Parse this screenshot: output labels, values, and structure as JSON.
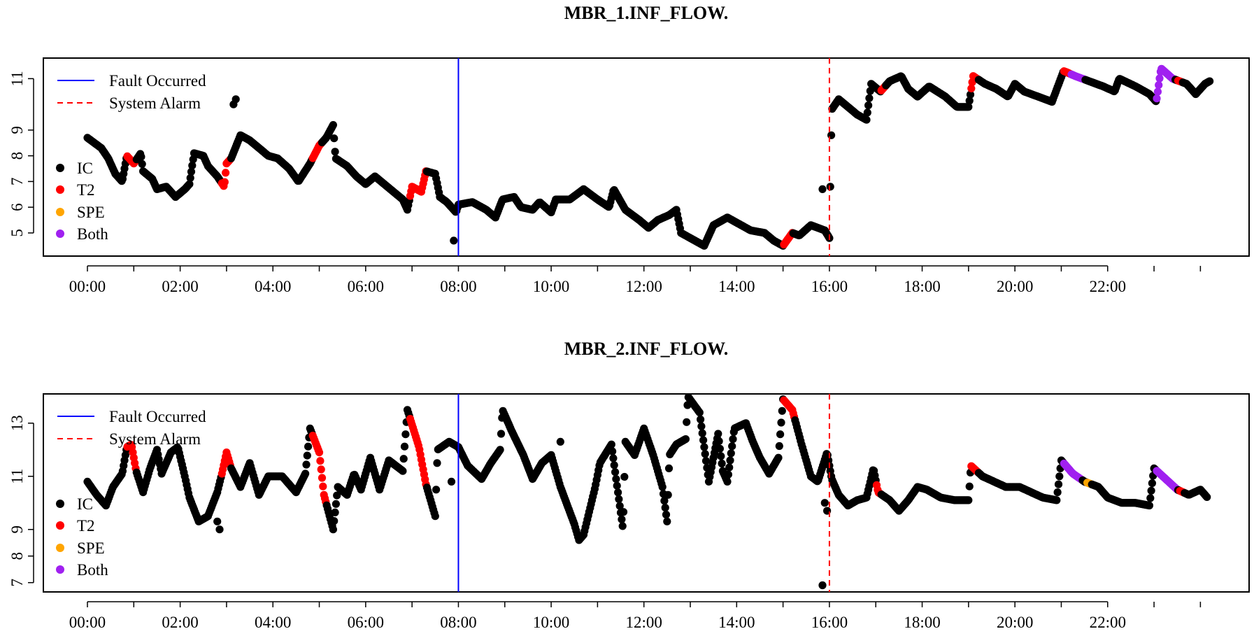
{
  "colors": {
    "IC": "#000000",
    "T2": "#ff0000",
    "SPE": "#ffa500",
    "Both": "#a020f0",
    "fault_line": "#0000ff",
    "alarm_line": "#ff0000"
  },
  "legend": {
    "fault": "Fault Occurred",
    "alarm": "System Alarm",
    "ic": "IC",
    "t2": "T2",
    "spe": "SPE",
    "both": "Both"
  },
  "chart_data": [
    {
      "type": "scatter",
      "title": "MBR_1.INF_FLOW.",
      "xlabel": "",
      "ylabel": "",
      "x_unit": "hours",
      "xlim": [
        -0.95,
        25.05
      ],
      "ylim": [
        4.1,
        11.8
      ],
      "x_tick_labels": [
        "00:00",
        "02:00",
        "04:00",
        "06:00",
        "08:00",
        "10:00",
        "12:00",
        "14:00",
        "16:00",
        "18:00",
        "20:00",
        "22:00"
      ],
      "y_ticks": [
        5,
        6,
        7,
        8,
        9,
        11
      ],
      "fault_occurred": "08:00",
      "system_alarm": "16:00",
      "legend_position": "top-left",
      "anchors": [
        [
          0.0,
          8.7
        ],
        [
          0.3,
          8.3
        ],
        [
          0.45,
          7.9
        ],
        [
          0.6,
          7.3
        ],
        [
          0.75,
          7.0
        ],
        [
          0.85,
          8.0
        ],
        [
          1.0,
          7.7
        ],
        [
          1.15,
          8.1
        ],
        [
          1.2,
          7.4
        ],
        [
          1.4,
          7.1
        ],
        [
          1.5,
          6.7
        ],
        [
          1.7,
          6.8
        ],
        [
          1.9,
          6.4
        ],
        [
          2.1,
          6.7
        ],
        [
          2.2,
          6.9
        ],
        [
          2.3,
          8.1
        ],
        [
          2.5,
          8.0
        ],
        [
          2.6,
          7.6
        ],
        [
          2.8,
          7.2
        ],
        [
          2.95,
          6.8
        ],
        [
          3.0,
          7.7
        ],
        [
          3.1,
          7.9
        ],
        [
          3.3,
          8.8
        ],
        [
          3.5,
          8.6
        ],
        [
          3.7,
          8.3
        ],
        [
          3.9,
          8.0
        ],
        [
          4.1,
          7.9
        ],
        [
          4.35,
          7.5
        ],
        [
          4.55,
          7.0
        ],
        [
          4.8,
          7.7
        ],
        [
          5.0,
          8.4
        ],
        [
          5.15,
          8.7
        ],
        [
          5.3,
          9.2
        ],
        [
          5.35,
          7.9
        ],
        [
          5.6,
          7.6
        ],
        [
          5.8,
          7.2
        ],
        [
          6.0,
          6.9
        ],
        [
          6.2,
          7.2
        ],
        [
          6.4,
          6.9
        ],
        [
          6.6,
          6.6
        ],
        [
          6.8,
          6.3
        ],
        [
          6.9,
          5.9
        ],
        [
          7.0,
          6.8
        ],
        [
          7.2,
          6.6
        ],
        [
          7.3,
          7.4
        ],
        [
          7.5,
          7.3
        ],
        [
          7.6,
          6.4
        ],
        [
          7.75,
          6.2
        ],
        [
          7.95,
          5.8
        ],
        [
          8.0,
          6.1
        ],
        [
          8.3,
          6.2
        ],
        [
          8.6,
          5.9
        ],
        [
          8.8,
          5.6
        ],
        [
          8.95,
          6.3
        ],
        [
          9.2,
          6.4
        ],
        [
          9.35,
          6.0
        ],
        [
          9.6,
          5.9
        ],
        [
          9.75,
          6.2
        ],
        [
          10.0,
          5.8
        ],
        [
          10.1,
          6.3
        ],
        [
          10.4,
          6.3
        ],
        [
          10.7,
          6.7
        ],
        [
          11.0,
          6.3
        ],
        [
          11.25,
          6.0
        ],
        [
          11.35,
          6.7
        ],
        [
          11.6,
          5.9
        ],
        [
          11.9,
          5.5
        ],
        [
          12.1,
          5.2
        ],
        [
          12.3,
          5.5
        ],
        [
          12.55,
          5.7
        ],
        [
          12.7,
          5.9
        ],
        [
          12.8,
          5.0
        ],
        [
          13.0,
          4.8
        ],
        [
          13.3,
          4.5
        ],
        [
          13.5,
          5.3
        ],
        [
          13.8,
          5.6
        ],
        [
          14.0,
          5.4
        ],
        [
          14.3,
          5.1
        ],
        [
          14.6,
          5.0
        ],
        [
          14.8,
          4.7
        ],
        [
          15.0,
          4.5
        ],
        [
          15.2,
          5.0
        ],
        [
          15.35,
          4.9
        ],
        [
          15.6,
          5.3
        ],
        [
          15.9,
          5.1
        ],
        [
          16.0,
          4.8
        ],
        [
          16.05,
          9.8
        ],
        [
          16.2,
          10.2
        ],
        [
          16.4,
          9.9
        ],
        [
          16.6,
          9.6
        ],
        [
          16.8,
          9.4
        ],
        [
          16.9,
          10.8
        ],
        [
          17.1,
          10.5
        ],
        [
          17.3,
          10.9
        ],
        [
          17.55,
          11.1
        ],
        [
          17.7,
          10.6
        ],
        [
          17.9,
          10.3
        ],
        [
          18.15,
          10.7
        ],
        [
          18.5,
          10.3
        ],
        [
          18.75,
          9.9
        ],
        [
          19.0,
          9.9
        ],
        [
          19.1,
          11.1
        ],
        [
          19.35,
          10.8
        ],
        [
          19.6,
          10.6
        ],
        [
          19.85,
          10.3
        ],
        [
          20.0,
          10.8
        ],
        [
          20.2,
          10.5
        ],
        [
          20.5,
          10.3
        ],
        [
          20.8,
          10.1
        ],
        [
          21.05,
          11.3
        ],
        [
          21.3,
          11.1
        ],
        [
          21.6,
          10.9
        ],
        [
          21.9,
          10.7
        ],
        [
          22.15,
          10.5
        ],
        [
          22.25,
          11.0
        ],
        [
          22.6,
          10.7
        ],
        [
          22.9,
          10.4
        ],
        [
          23.05,
          10.1
        ],
        [
          23.15,
          11.4
        ],
        [
          23.4,
          11.0
        ],
        [
          23.7,
          10.8
        ],
        [
          23.9,
          10.4
        ],
        [
          24.1,
          10.8
        ],
        [
          24.2,
          10.9
        ]
      ],
      "outliers": [
        [
          7.9,
          4.7
        ],
        [
          15.85,
          6.7
        ],
        [
          3.2,
          10.2
        ],
        [
          3.15,
          10.0
        ]
      ],
      "t2_ranges": [
        [
          0.85,
          1.05
        ],
        [
          2.9,
          3.1
        ],
        [
          4.85,
          5.05
        ],
        [
          6.95,
          7.3
        ],
        [
          15.0,
          15.2
        ],
        [
          17.1,
          17.2
        ],
        [
          19.05,
          19.2
        ],
        [
          21.05,
          21.2
        ],
        [
          23.5,
          23.6
        ]
      ],
      "spe_ranges": [],
      "both_ranges": [
        [
          21.2,
          21.5
        ],
        [
          23.05,
          23.45
        ]
      ]
    },
    {
      "type": "scatter",
      "title": "MBR_2.INF_FLOW.",
      "xlabel": "",
      "ylabel": "",
      "x_unit": "hours",
      "xlim": [
        -0.95,
        25.05
      ],
      "ylim": [
        6.65,
        14.1
      ],
      "x_tick_labels": [
        "00:00",
        "02:00",
        "04:00",
        "06:00",
        "08:00",
        "10:00",
        "12:00",
        "14:00",
        "16:00",
        "18:00",
        "20:00",
        "22:00"
      ],
      "y_ticks": [
        7,
        8,
        9,
        11,
        13
      ],
      "fault_occurred": "08:00",
      "system_alarm": "16:00",
      "legend_position": "top-left",
      "anchors": [
        [
          0.0,
          10.8
        ],
        [
          0.2,
          10.3
        ],
        [
          0.4,
          9.9
        ],
        [
          0.55,
          10.6
        ],
        [
          0.75,
          11.1
        ],
        [
          0.85,
          12.1
        ],
        [
          0.95,
          12.2
        ],
        [
          1.05,
          11.2
        ],
        [
          1.2,
          10.4
        ],
        [
          1.35,
          11.3
        ],
        [
          1.5,
          12.0
        ],
        [
          1.6,
          11.1
        ],
        [
          1.8,
          11.9
        ],
        [
          1.95,
          12.1
        ],
        [
          2.1,
          11.0
        ],
        [
          2.2,
          10.2
        ],
        [
          2.4,
          9.3
        ],
        [
          2.6,
          9.5
        ],
        [
          2.8,
          10.4
        ],
        [
          2.9,
          11.1
        ],
        [
          3.0,
          11.9
        ],
        [
          3.1,
          11.3
        ],
        [
          3.3,
          10.6
        ],
        [
          3.5,
          11.5
        ],
        [
          3.7,
          10.3
        ],
        [
          3.9,
          11.0
        ],
        [
          4.2,
          11.0
        ],
        [
          4.5,
          10.4
        ],
        [
          4.7,
          11.1
        ],
        [
          4.8,
          12.8
        ],
        [
          5.0,
          11.9
        ],
        [
          5.1,
          10.3
        ],
        [
          5.3,
          9.0
        ],
        [
          5.4,
          10.6
        ],
        [
          5.6,
          10.3
        ],
        [
          5.75,
          11.1
        ],
        [
          5.9,
          10.5
        ],
        [
          6.1,
          11.7
        ],
        [
          6.3,
          10.5
        ],
        [
          6.5,
          11.6
        ],
        [
          6.8,
          11.2
        ],
        [
          6.9,
          13.5
        ],
        [
          7.15,
          12.1
        ],
        [
          7.3,
          10.7
        ],
        [
          7.5,
          9.5
        ],
        [
          7.55,
          12.0
        ],
        [
          7.8,
          12.3
        ],
        [
          8.0,
          12.1
        ],
        [
          8.2,
          11.4
        ],
        [
          8.5,
          10.9
        ],
        [
          8.7,
          11.5
        ],
        [
          8.9,
          12.0
        ],
        [
          8.95,
          13.5
        ],
        [
          9.15,
          12.7
        ],
        [
          9.4,
          11.8
        ],
        [
          9.6,
          10.9
        ],
        [
          9.8,
          11.5
        ],
        [
          10.0,
          11.8
        ],
        [
          10.2,
          10.6
        ],
        [
          10.5,
          9.2
        ],
        [
          10.6,
          8.6
        ],
        [
          10.7,
          8.8
        ],
        [
          10.95,
          10.6
        ],
        [
          11.05,
          11.5
        ],
        [
          11.3,
          12.2
        ],
        [
          11.4,
          10.9
        ],
        [
          11.55,
          9.0
        ],
        [
          11.6,
          12.3
        ],
        [
          11.8,
          11.8
        ],
        [
          12.0,
          12.8
        ],
        [
          12.2,
          11.8
        ],
        [
          12.4,
          10.6
        ],
        [
          12.5,
          9.3
        ],
        [
          12.55,
          11.8
        ],
        [
          12.7,
          12.2
        ],
        [
          12.9,
          12.4
        ],
        [
          12.95,
          14.0
        ],
        [
          13.2,
          13.4
        ],
        [
          13.4,
          10.8
        ],
        [
          13.6,
          12.6
        ],
        [
          13.7,
          11.2
        ],
        [
          13.8,
          10.8
        ],
        [
          13.95,
          12.8
        ],
        [
          14.2,
          13.0
        ],
        [
          14.35,
          12.3
        ],
        [
          14.5,
          11.7
        ],
        [
          14.7,
          11.1
        ],
        [
          14.9,
          11.7
        ],
        [
          15.0,
          13.9
        ],
        [
          15.2,
          13.5
        ],
        [
          15.4,
          12.2
        ],
        [
          15.6,
          11.0
        ],
        [
          15.75,
          10.8
        ],
        [
          15.95,
          11.9
        ],
        [
          16.05,
          10.9
        ],
        [
          16.2,
          10.3
        ],
        [
          16.4,
          9.9
        ],
        [
          16.6,
          10.1
        ],
        [
          16.8,
          10.2
        ],
        [
          16.95,
          11.3
        ],
        [
          17.05,
          10.4
        ],
        [
          17.3,
          10.1
        ],
        [
          17.5,
          9.7
        ],
        [
          17.7,
          10.1
        ],
        [
          17.9,
          10.6
        ],
        [
          18.1,
          10.5
        ],
        [
          18.4,
          10.2
        ],
        [
          18.7,
          10.1
        ],
        [
          19.0,
          10.1
        ],
        [
          19.05,
          11.4
        ],
        [
          19.3,
          11.0
        ],
        [
          19.55,
          10.8
        ],
        [
          19.8,
          10.6
        ],
        [
          20.1,
          10.6
        ],
        [
          20.35,
          10.4
        ],
        [
          20.6,
          10.2
        ],
        [
          20.9,
          10.1
        ],
        [
          21.0,
          11.6
        ],
        [
          21.25,
          11.1
        ],
        [
          21.5,
          10.8
        ],
        [
          21.8,
          10.6
        ],
        [
          22.0,
          10.2
        ],
        [
          22.3,
          10.0
        ],
        [
          22.6,
          10.0
        ],
        [
          22.9,
          9.9
        ],
        [
          23.0,
          11.3
        ],
        [
          23.25,
          10.9
        ],
        [
          23.5,
          10.5
        ],
        [
          23.75,
          10.3
        ],
        [
          24.0,
          10.5
        ],
        [
          24.15,
          10.2
        ]
      ],
      "outliers": [
        [
          7.85,
          10.8
        ],
        [
          2.85,
          9.0
        ],
        [
          2.8,
          9.3
        ],
        [
          15.9,
          10.0
        ],
        [
          15.95,
          9.7
        ],
        [
          15.85,
          6.9
        ],
        [
          10.2,
          12.3
        ],
        [
          12.0,
          12.6
        ]
      ],
      "t2_ranges": [
        [
          0.85,
          1.05
        ],
        [
          2.9,
          3.1
        ],
        [
          4.85,
          5.15
        ],
        [
          6.95,
          7.3
        ],
        [
          15.0,
          15.25
        ],
        [
          17.0,
          17.1
        ],
        [
          19.05,
          19.2
        ],
        [
          23.55,
          23.65
        ]
      ],
      "spe_ranges": [
        [
          21.55,
          21.65
        ]
      ],
      "both_ranges": [
        [
          21.05,
          21.45
        ],
        [
          23.05,
          23.5
        ]
      ]
    }
  ]
}
